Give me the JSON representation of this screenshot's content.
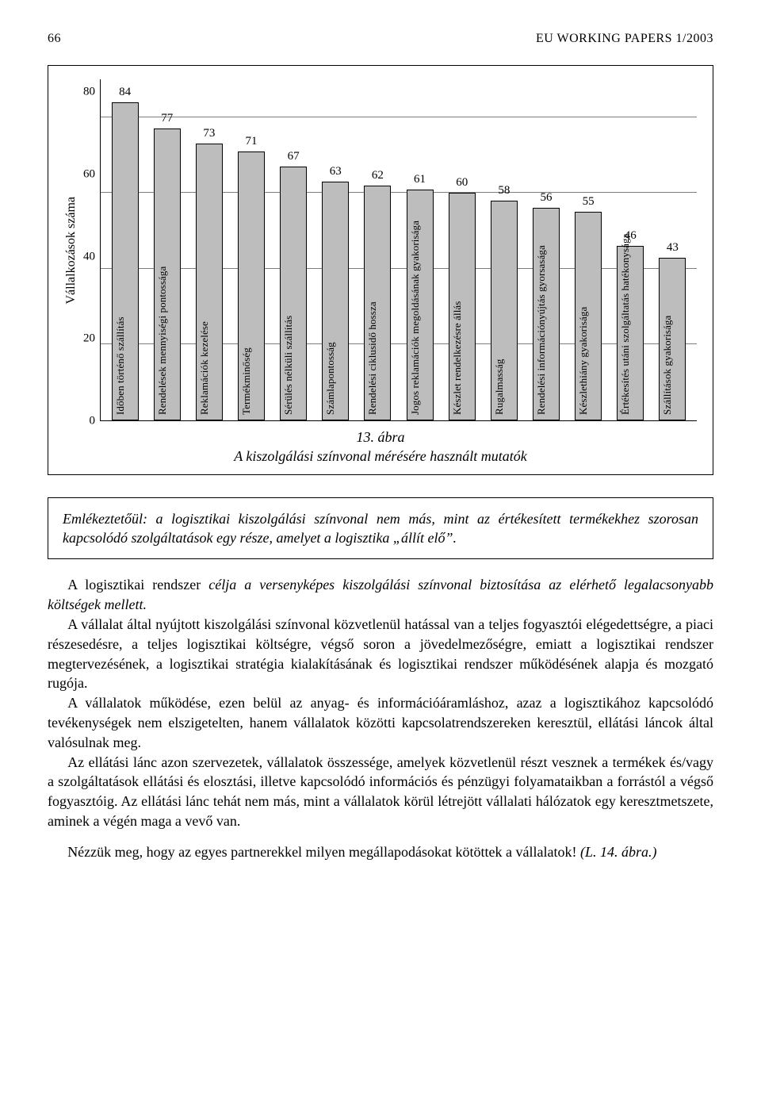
{
  "page": {
    "number": "66",
    "running_title": "EU WORKING PAPERS 1/2003"
  },
  "chart": {
    "type": "bar",
    "y_axis_title": "Vállalkozások száma",
    "y_ticks": [
      "80",
      "60",
      "40",
      "20",
      "0"
    ],
    "y_max": 90,
    "y_step": 20,
    "bar_color": "#bdbdbd",
    "border_color": "#000000",
    "grid_color": "#000000",
    "background": "#ffffff",
    "value_fontsize": 15,
    "label_fontsize": 13,
    "axis_title_fontsize": 16,
    "categories": [
      "Időben történő szállítás",
      "Rendelések mennyiségi pontossága",
      "Reklamációk kezelése",
      "Termékminőség",
      "Sérülés nélküli szállítás",
      "Számlapontosság",
      "Rendelési ciklusidő hossza",
      "Jogos reklamációk megoldásának gyakorisága",
      "Készlet rendelkezésre állás",
      "Rugalmasság",
      "Rendelési információnyújtás gyorsasága",
      "Készlethiány gyakorisága",
      "Értékesítés utáni szolgáltatás hatékonysága",
      "Szállítások gyakorisága"
    ],
    "values": [
      84,
      77,
      73,
      71,
      67,
      63,
      62,
      61,
      60,
      58,
      56,
      55,
      46,
      43
    ]
  },
  "caption": {
    "fig_no": "13. ábra",
    "title": "A kiszolgálási színvonal mérésére használt mutatók"
  },
  "note_box": "Emlékeztetőül: a logisztikai kiszolgálási színvonal nem más, mint az értékesített termékekhez szorosan kapcsolódó szolgáltatások egy része, amelyet a logisztika „állít elő”.",
  "body": {
    "p1": "A logisztikai rendszer célja a versenyképes kiszolgálási színvonal biztosítása az elérhető legalacsonyabb költségek mellett.",
    "p2": "A vállalat által nyújtott kiszolgálási színvonal közvetlenül hatással van a teljes fogyasztói elégedettségre, a piaci részesedésre, a teljes logisztikai költségre, végső soron a jövedelmezőségre, emiatt a logisztikai rendszer megtervezésének, a logisztikai stratégia kialakításának és logisztikai rendszer működésének alapja és mozgató rugója.",
    "p3": "A vállalatok működése, ezen belül az anyag- és információáramláshoz, azaz a logisztikához kapcsolódó tevékenységek nem elszigetelten, hanem vállalatok közötti kapcsolatrendszereken keresztül, ellátási láncok által valósulnak meg.",
    "p4": "Az ellátási lánc azon szervezetek, vállalatok összessége, amelyek közvetlenül részt vesznek a termékek és/vagy a szolgáltatások ellátási és elosztási, illetve kapcsolódó információs és pénzügyi folyamataikban a forrástól a végső fogyasztóig. Az ellátási lánc tehát nem más, mint a vállalatok körül létrejött vállalati hálózatok egy keresztmetszete, aminek a végén maga a vevő van.",
    "p5a": "Nézzük meg, hogy az egyes partnerekkel milyen megállapodásokat kötöttek a vállalatok! ",
    "p5b": "(L. 14. ábra.)"
  }
}
